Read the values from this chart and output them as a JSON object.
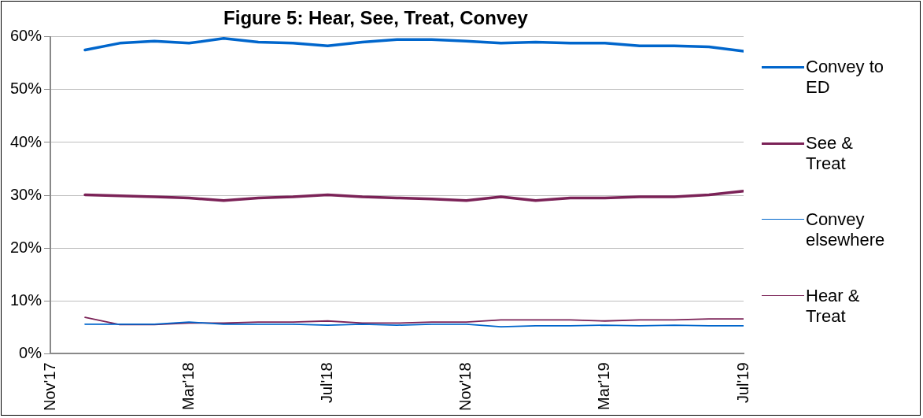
{
  "chart_data": {
    "type": "line",
    "title": "Figure 5: Hear, See, Treat, Convey",
    "x": [
      "2017-12",
      "2018-01",
      "2018-02",
      "2018-03",
      "2018-04",
      "2018-05",
      "2018-06",
      "2018-07",
      "2018-08",
      "2018-09",
      "2018-10",
      "2018-11",
      "2018-12",
      "2019-01",
      "2019-02",
      "2019-03",
      "2019-04",
      "2019-05",
      "2019-06",
      "2019-07"
    ],
    "series": [
      {
        "name": "Convey to ED",
        "color": "#0066cc",
        "values": [
          57.5,
          58.8,
          59.2,
          58.8,
          59.7,
          59.0,
          58.8,
          58.3,
          59.0,
          59.5,
          59.5,
          59.2,
          58.8,
          59.0,
          58.8,
          58.8,
          58.3,
          58.3,
          58.1,
          57.3
        ]
      },
      {
        "name": "See & Treat",
        "color": "#7b2257",
        "values": [
          30.1,
          29.9,
          29.7,
          29.5,
          29.0,
          29.5,
          29.7,
          30.1,
          29.7,
          29.5,
          29.3,
          29.0,
          29.7,
          29.0,
          29.5,
          29.5,
          29.7,
          29.7,
          30.1,
          30.8
        ]
      },
      {
        "name": "Convey elsewhere",
        "color": "#0066cc",
        "values": [
          5.6,
          5.6,
          5.6,
          6.0,
          5.6,
          5.6,
          5.6,
          5.4,
          5.6,
          5.4,
          5.6,
          5.6,
          5.1,
          5.3,
          5.3,
          5.4,
          5.3,
          5.4,
          5.3,
          5.3
        ]
      },
      {
        "name": "Hear & Treat",
        "color": "#7b2257",
        "values": [
          6.9,
          5.5,
          5.5,
          5.8,
          5.8,
          6.0,
          6.0,
          6.2,
          5.8,
          5.8,
          6.0,
          6.0,
          6.4,
          6.4,
          6.4,
          6.2,
          6.4,
          6.4,
          6.6,
          6.6
        ]
      }
    ],
    "xlim": [
      "2017-11",
      "2019-07"
    ],
    "xticks": [
      {
        "value": "2017-11",
        "label": "Nov'17"
      },
      {
        "value": "2018-03",
        "label": "Mar'18"
      },
      {
        "value": "2018-07",
        "label": "Jul'18"
      },
      {
        "value": "2018-11",
        "label": "Nov'18"
      },
      {
        "value": "2019-03",
        "label": "Mar'19"
      },
      {
        "value": "2019-07",
        "label": "Jul'19"
      }
    ],
    "ylim": [
      0,
      60
    ],
    "yticks": [
      {
        "value": 0,
        "label": "0%"
      },
      {
        "value": 10,
        "label": "10%"
      },
      {
        "value": 20,
        "label": "20%"
      },
      {
        "value": 30,
        "label": "30%"
      },
      {
        "value": 40,
        "label": "40%"
      },
      {
        "value": 50,
        "label": "50%"
      },
      {
        "value": 60,
        "label": "60%"
      }
    ],
    "grid": "y",
    "legend": "right",
    "marker": "none",
    "line_style": "solid"
  }
}
